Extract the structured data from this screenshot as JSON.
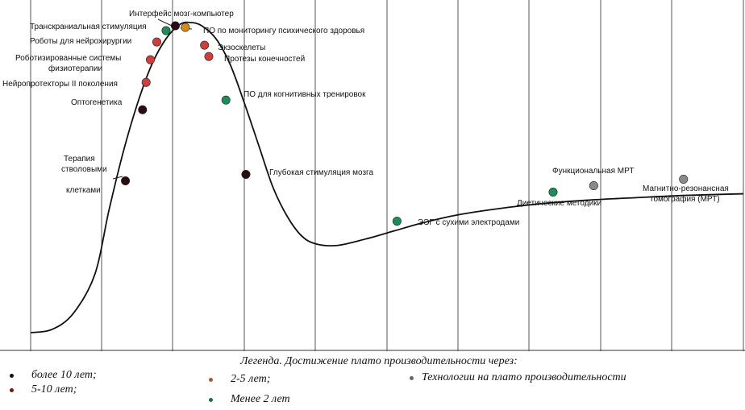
{
  "chart_data": {
    "type": "line",
    "title": "",
    "xlabel": "",
    "ylabel": "",
    "grid": "vertical",
    "curve": [
      [
        0,
        2
      ],
      [
        3,
        3
      ],
      [
        6,
        8
      ],
      [
        9,
        20
      ],
      [
        11,
        40
      ],
      [
        13,
        58
      ],
      [
        15,
        73
      ],
      [
        17,
        85
      ],
      [
        19,
        93
      ],
      [
        21,
        97.5
      ],
      [
        22.5,
        98
      ],
      [
        24,
        97
      ],
      [
        26,
        93
      ],
      [
        28,
        85
      ],
      [
        30,
        73
      ],
      [
        32,
        60
      ],
      [
        34,
        47
      ],
      [
        36,
        38
      ],
      [
        38,
        32
      ],
      [
        40,
        29.5
      ],
      [
        43,
        29
      ],
      [
        47,
        31
      ],
      [
        51,
        33.5
      ],
      [
        55,
        36
      ],
      [
        60,
        38.5
      ],
      [
        66,
        40.5
      ],
      [
        72,
        42
      ],
      [
        78,
        43
      ],
      [
        85,
        43.8
      ],
      [
        92,
        44.5
      ],
      [
        100,
        45
      ]
    ],
    "points": [
      {
        "label": "Интерфейс мозг-компьютер",
        "x": 20.3,
        "y": 97,
        "group": "black"
      },
      {
        "label": "Транскраниальная стимуляция",
        "x": 19,
        "y": 95.5,
        "group": "green"
      },
      {
        "label": "ПО по мониторингу психического здоровья",
        "x": 21.7,
        "y": 96.5,
        "group": "orange"
      },
      {
        "label": "Роботы для нейрохирургии",
        "x": 17.7,
        "y": 92,
        "group": "red"
      },
      {
        "label": "Экзоскелеты",
        "x": 24.4,
        "y": 91,
        "group": "red"
      },
      {
        "label": "Роботизированные системы физиотерапии",
        "x": 16.8,
        "y": 86.5,
        "group": "red"
      },
      {
        "label": "Протезы конечностей",
        "x": 25,
        "y": 87.5,
        "group": "red"
      },
      {
        "label": "Нейропротекторы II поколения",
        "x": 16.2,
        "y": 79.5,
        "group": "red"
      },
      {
        "label": "ПО для когнитивных тренировок",
        "x": 27.4,
        "y": 74,
        "group": "green"
      },
      {
        "label": "Оптогенетика",
        "x": 15.7,
        "y": 71,
        "group": "black"
      },
      {
        "label": "Терапия стволовыми клетками",
        "x": 13.3,
        "y": 49,
        "group": "black"
      },
      {
        "label": "Глубокая стимуляция мозга",
        "x": 30.2,
        "y": 51,
        "group": "black"
      },
      {
        "label": "ЭЭГ с сухими электродами",
        "x": 51.4,
        "y": 36.5,
        "group": "green"
      },
      {
        "label": "Диетические методики",
        "x": 73.3,
        "y": 45.5,
        "group": "green"
      },
      {
        "label": "Функциональная МРТ",
        "x": 79,
        "y": 47.5,
        "group": "gray"
      },
      {
        "label": "Магнитно-резонансная томография (МРТ)",
        "x": 91.6,
        "y": 49.5,
        "group": "gray"
      }
    ],
    "labels": {
      "bci": "Интерфейс мозг-компьютер",
      "tms": "Транскраниальная стимуляция",
      "mh": "ПО по мониторингу психического здоровья",
      "robots": "Роботы для нейрохирургии",
      "exo": "Экзоскелеты",
      "physio1": "Роботизированные системы",
      "physio2": "физиотерапии",
      "prost": "Протезы конечностей",
      "neuro": "Нейропротекторы II поколения",
      "cog": "ПО для когнитивных тренировок",
      "opto": "Оптогенетика",
      "stem1": "Терапия",
      "stem2": "стволовыми",
      "stem3": "клетками",
      "dbs": "Глубокая стимуляция мозга",
      "eeg": "ЭЭГ с сухими электродами",
      "diet": "Диетические методики",
      "fmri": "Функциональная МРТ",
      "mri1": "Магнитно-резонансная",
      "mri2": "томография (МРТ)"
    },
    "colors": {
      "black": "#2a0d10",
      "green": "#1f8a5a",
      "orange": "#d98c1a",
      "red": "#c9403f",
      "gray": "#8a8a8a",
      "line": "#111111",
      "grid": "#555555"
    }
  },
  "legend": {
    "title": "Легенда. Достижение плато производительности через:",
    "items": [
      {
        "label": "более 10 лет;",
        "color": "#111111"
      },
      {
        "label": "5-10 лет;",
        "color": "#6a1a1a"
      },
      {
        "label": "2-5 лет;",
        "color": "#b0582a"
      },
      {
        "label": "Менее 2 лет",
        "color": "#1f6a48"
      },
      {
        "label": "Технологии на плато производительности",
        "color": "#666666"
      }
    ]
  }
}
